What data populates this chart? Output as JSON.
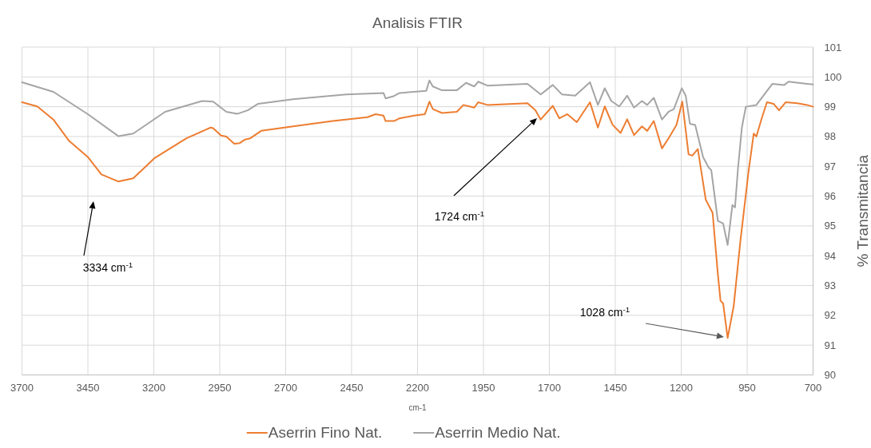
{
  "chart_data": {
    "type": "line",
    "title": "Analisis FTIR",
    "xlabel": "cm-1",
    "ylabel": "% Transmitancia",
    "xlim": [
      3700,
      700
    ],
    "xticks": [
      3700,
      3450,
      3200,
      2950,
      2700,
      2450,
      2200,
      1950,
      1700,
      1450,
      1200,
      950,
      700
    ],
    "ylim": [
      90,
      101
    ],
    "yticks": [
      90,
      91,
      92,
      93,
      94,
      95,
      96,
      97,
      98,
      99,
      100,
      101
    ],
    "grid": true,
    "legend": "bottom",
    "line_style": "solid",
    "series": [
      {
        "name": "Aserrin Fino Nat.",
        "color": "#ed7d31",
        "x": [
          3700,
          3642,
          3581,
          3521,
          3450,
          3399,
          3334,
          3278,
          3198,
          3076,
          2985,
          2975,
          2945,
          2925,
          2895,
          2874,
          2854,
          2834,
          2793,
          2672,
          2521,
          2390,
          2359,
          2329,
          2321,
          2289,
          2268,
          2213,
          2172,
          2155,
          2142,
          2107,
          2051,
          2026,
          1985,
          1970,
          1935,
          1783,
          1753,
          1733,
          1687,
          1662,
          1632,
          1596,
          1546,
          1516,
          1490,
          1460,
          1430,
          1405,
          1379,
          1349,
          1329,
          1304,
          1273,
          1248,
          1218,
          1196,
          1172,
          1158,
          1137,
          1107,
          1081,
          1061,
          1051,
          1041,
          1024,
          1001,
          975,
          945,
          925,
          915,
          895,
          875,
          850,
          829,
          804,
          760,
          723,
          700
        ],
        "values": [
          99.15,
          99.01,
          98.57,
          97.85,
          97.31,
          96.73,
          96.49,
          96.6,
          97.27,
          97.94,
          98.3,
          98.28,
          98.03,
          98.0,
          97.76,
          97.78,
          97.9,
          97.94,
          98.19,
          98.34,
          98.52,
          98.65,
          98.75,
          98.7,
          98.52,
          98.52,
          98.61,
          98.7,
          98.75,
          99.17,
          98.92,
          98.79,
          98.83,
          99.06,
          98.97,
          99.15,
          99.06,
          99.12,
          98.88,
          98.57,
          99.03,
          98.61,
          98.75,
          98.48,
          99.15,
          98.3,
          99.01,
          98.39,
          98.12,
          98.58,
          98.05,
          98.34,
          98.19,
          98.52,
          97.6,
          97.94,
          98.39,
          99.17,
          97.4,
          97.36,
          97.58,
          95.88,
          95.44,
          93.38,
          92.49,
          92.4,
          91.24,
          92.31,
          94.54,
          96.8,
          98.1,
          98.0,
          98.6,
          99.15,
          99.1,
          98.88,
          99.15,
          99.12,
          99.06,
          99.0
        ]
      },
      {
        "name": "Aserrin Medio Nat.",
        "color": "#a5a5a5",
        "x": [
          3700,
          3581,
          3450,
          3334,
          3278,
          3157,
          3017,
          2975,
          2925,
          2884,
          2844,
          2804,
          2672,
          2470,
          2329,
          2321,
          2289,
          2268,
          2167,
          2155,
          2142,
          2107,
          2051,
          2016,
          1985,
          1970,
          1935,
          1783,
          1733,
          1687,
          1652,
          1602,
          1546,
          1516,
          1490,
          1465,
          1435,
          1405,
          1379,
          1349,
          1329,
          1304,
          1273,
          1248,
          1228,
          1198,
          1183,
          1167,
          1147,
          1117,
          1096,
          1086,
          1061,
          1041,
          1024,
          1006,
          996,
          985,
          970,
          955,
          915,
          854,
          809,
          793,
          723,
          700
        ],
        "values": [
          99.82,
          99.5,
          98.75,
          98.01,
          98.1,
          98.83,
          99.19,
          99.17,
          98.83,
          98.76,
          98.88,
          99.1,
          99.25,
          99.41,
          99.46,
          99.28,
          99.36,
          99.46,
          99.53,
          99.88,
          99.68,
          99.55,
          99.55,
          99.8,
          99.68,
          99.84,
          99.71,
          99.77,
          99.41,
          99.73,
          99.41,
          99.37,
          99.82,
          99.06,
          99.62,
          99.19,
          99.01,
          99.37,
          98.97,
          99.19,
          99.06,
          99.3,
          98.57,
          98.83,
          98.92,
          99.62,
          99.37,
          98.43,
          98.39,
          97.31,
          96.96,
          96.87,
          95.17,
          95.08,
          94.36,
          95.7,
          95.62,
          96.9,
          98.3,
          99.0,
          99.06,
          99.77,
          99.73,
          99.84,
          99.77,
          99.75
        ]
      }
    ],
    "annotations": [
      "3334 cm$^{-1}$",
      "1724 cm$^{-1}$",
      "1028 cm$^{-1}$"
    ]
  }
}
